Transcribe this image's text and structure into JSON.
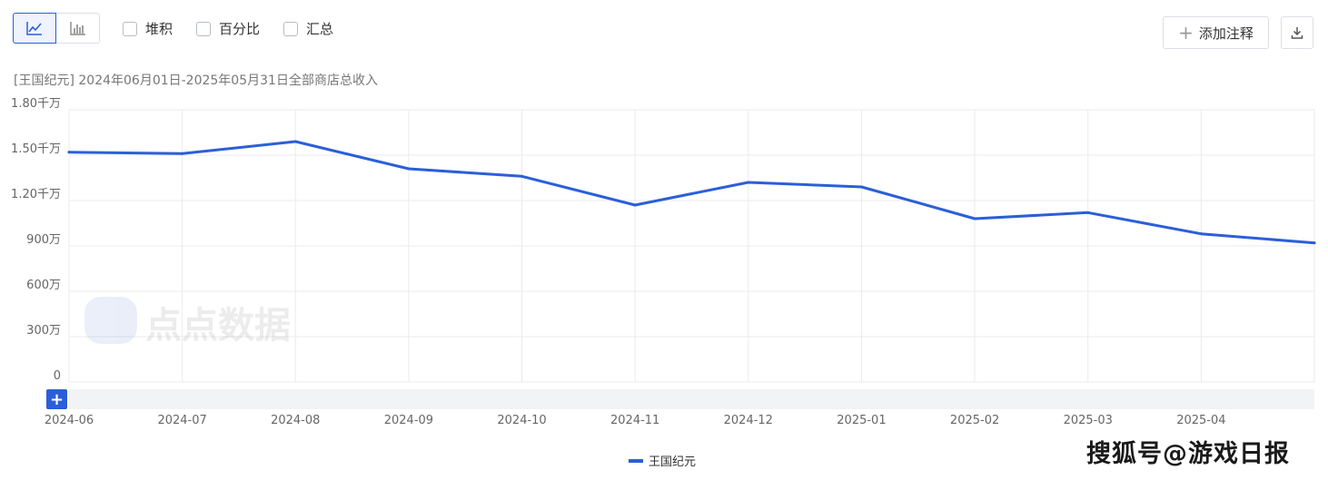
{
  "toolbar": {
    "chart_type_buttons": [
      {
        "icon": "line-chart-icon",
        "active": true
      },
      {
        "icon": "bar-chart-icon",
        "active": false
      }
    ],
    "checkboxes": [
      {
        "label": "堆积",
        "checked": false
      },
      {
        "label": "百分比",
        "checked": false
      },
      {
        "label": "汇总",
        "checked": false
      }
    ],
    "add_annotation_label": "添加注释",
    "download_icon": "download-icon"
  },
  "subtitle": "[王国纪元] 2024年06月01日-2025年05月31日全部商店总收入",
  "colors": {
    "accent": "#2b5fd9",
    "grid": "#ebebeb",
    "range_bar": "#f2f3f5"
  },
  "watermark_logo_text": "点点数据",
  "watermark_corner": "搜狐号@游戏日报",
  "range_button_label": "+",
  "chart_data": {
    "type": "line",
    "title": "",
    "xlabel": "",
    "ylabel": "",
    "x": [
      "2024-06",
      "2024-07",
      "2024-08",
      "2024-09",
      "2024-10",
      "2024-11",
      "2024-12",
      "2025-01",
      "2025-02",
      "2025-03",
      "2025-04",
      "2025-05"
    ],
    "x_tick_labels": [
      "2024-06",
      "2024-07",
      "2024-08",
      "2024-09",
      "2024-10",
      "2024-11",
      "2024-12",
      "2025-01",
      "2025-02",
      "2025-03",
      "2025-04"
    ],
    "y_ticks": [
      0,
      3000000,
      6000000,
      9000000,
      12000000,
      15000000,
      18000000
    ],
    "y_tick_labels": [
      "0",
      "300万",
      "600万",
      "900万",
      "1.20千万",
      "1.50千万",
      "1.80千万"
    ],
    "ylim": [
      0,
      18000000
    ],
    "grid": true,
    "legend_position": "bottom-center",
    "series": [
      {
        "name": "王国纪元",
        "color": "#2b5fd9",
        "values": [
          15200000,
          15100000,
          15900000,
          14100000,
          13600000,
          11700000,
          13200000,
          12900000,
          10800000,
          11200000,
          9800000,
          9200000
        ]
      }
    ]
  }
}
